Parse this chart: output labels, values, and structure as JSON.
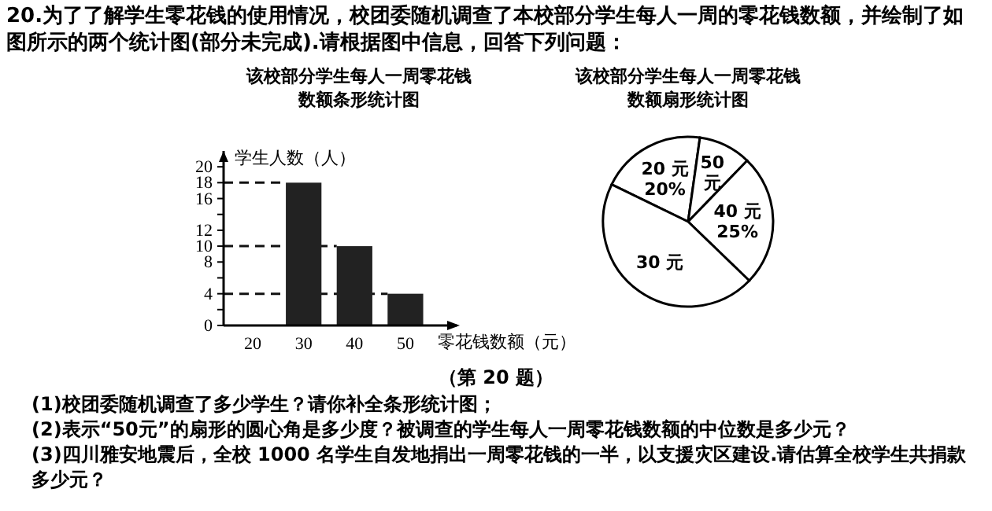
{
  "chart_data": [
    {
      "type": "other",
      "annotations": [
        "20.为了了解学生零花钱的使用情况，校团委随机调查了本校部分学生每人一周的零花钱数额，并绘制了如图所示的两个统计图(部分未完成).请根据图中信息，回答下列问题："
      ]
    },
    {
      "type": "bar",
      "title": "该校部分学生每人一周零花钱数额条形统计图",
      "xlabel": "零花钱数额（元）",
      "ylabel": "学生人数（人）",
      "categories": [
        "20",
        "30",
        "40",
        "50"
      ],
      "values": [
        null,
        18,
        10,
        4
      ],
      "color": "#222222",
      "ylim": [
        0,
        22
      ],
      "yticks": [
        0,
        {
          "value": 2,
          "label": null
        },
        4,
        {
          "value": 6,
          "label": null
        },
        8,
        10,
        12,
        {
          "value": 14,
          "label": null
        },
        16,
        18,
        20
      ],
      "ref_lines": [
        {
          "axis": "y",
          "value": 18,
          "line_style": "dashed"
        },
        {
          "axis": "y",
          "value": 10,
          "line_style": "dashed"
        },
        {
          "axis": "y",
          "value": 4,
          "line_style": "dashed"
        }
      ]
    },
    {
      "type": "pie",
      "title": "该校部分学生每人一周零花钱数额扇形统计图",
      "categories": [
        "20 元",
        "50 元",
        "40 元",
        "30 元"
      ],
      "values": [
        20,
        10,
        25,
        45
      ],
      "value_labels": [
        "20%",
        null,
        "25%",
        null
      ],
      "colors": [
        "#ffffff",
        "#ffffff",
        "#ffffff",
        "#ffffff"
      ]
    },
    {
      "type": "other",
      "annotations": [
        "（第 20 题）",
        "(1)校团委随机调查了多少学生？请你补全条形统计图；",
        "(2)表示“50元”的扇形的圆心角是多少度？被调查的学生每人一周零花钱数额的中位数是多少元？",
        "(3)四川雅安地震后，全校 1000 名学生自发地捐出一周零花钱的一半，以支援灾区建设.请估算全校学生共捐款多少元？"
      ]
    }
  ]
}
